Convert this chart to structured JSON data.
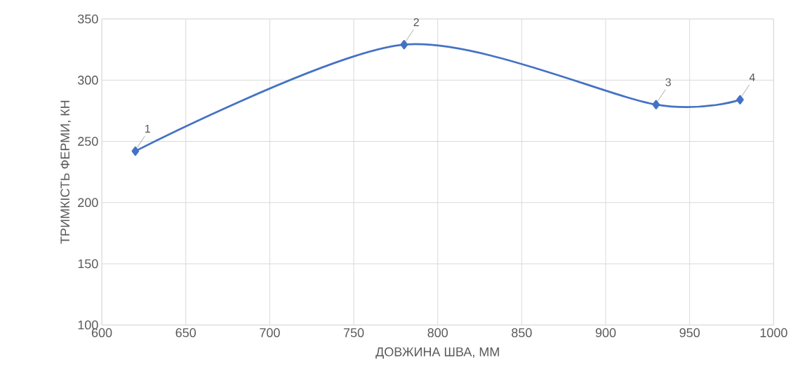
{
  "chart_data": {
    "type": "line",
    "xlabel": "ДОВЖИНА ШВА, ММ",
    "ylabel": "ТРИМКІСТЬ ФЕРМИ, КН",
    "x": [
      620,
      780,
      930,
      980
    ],
    "series": [
      {
        "color": "#4472c4",
        "values": [
          242,
          329,
          280,
          284
        ]
      }
    ],
    "xlim": [
      600,
      1000
    ],
    "ylim": [
      100,
      350
    ],
    "xticks": [
      600,
      650,
      700,
      750,
      800,
      850,
      900,
      950,
      1000
    ],
    "yticks": [
      100,
      150,
      200,
      250,
      300,
      350
    ],
    "grid": true,
    "marker": "diamond",
    "line_style": "solid",
    "annotations": [
      {
        "text": "1",
        "x": 620,
        "y": 242
      },
      {
        "text": "2",
        "x": 780,
        "y": 329
      },
      {
        "text": "3",
        "x": 930,
        "y": 280
      },
      {
        "text": "4",
        "x": 980,
        "y": 284
      }
    ]
  }
}
